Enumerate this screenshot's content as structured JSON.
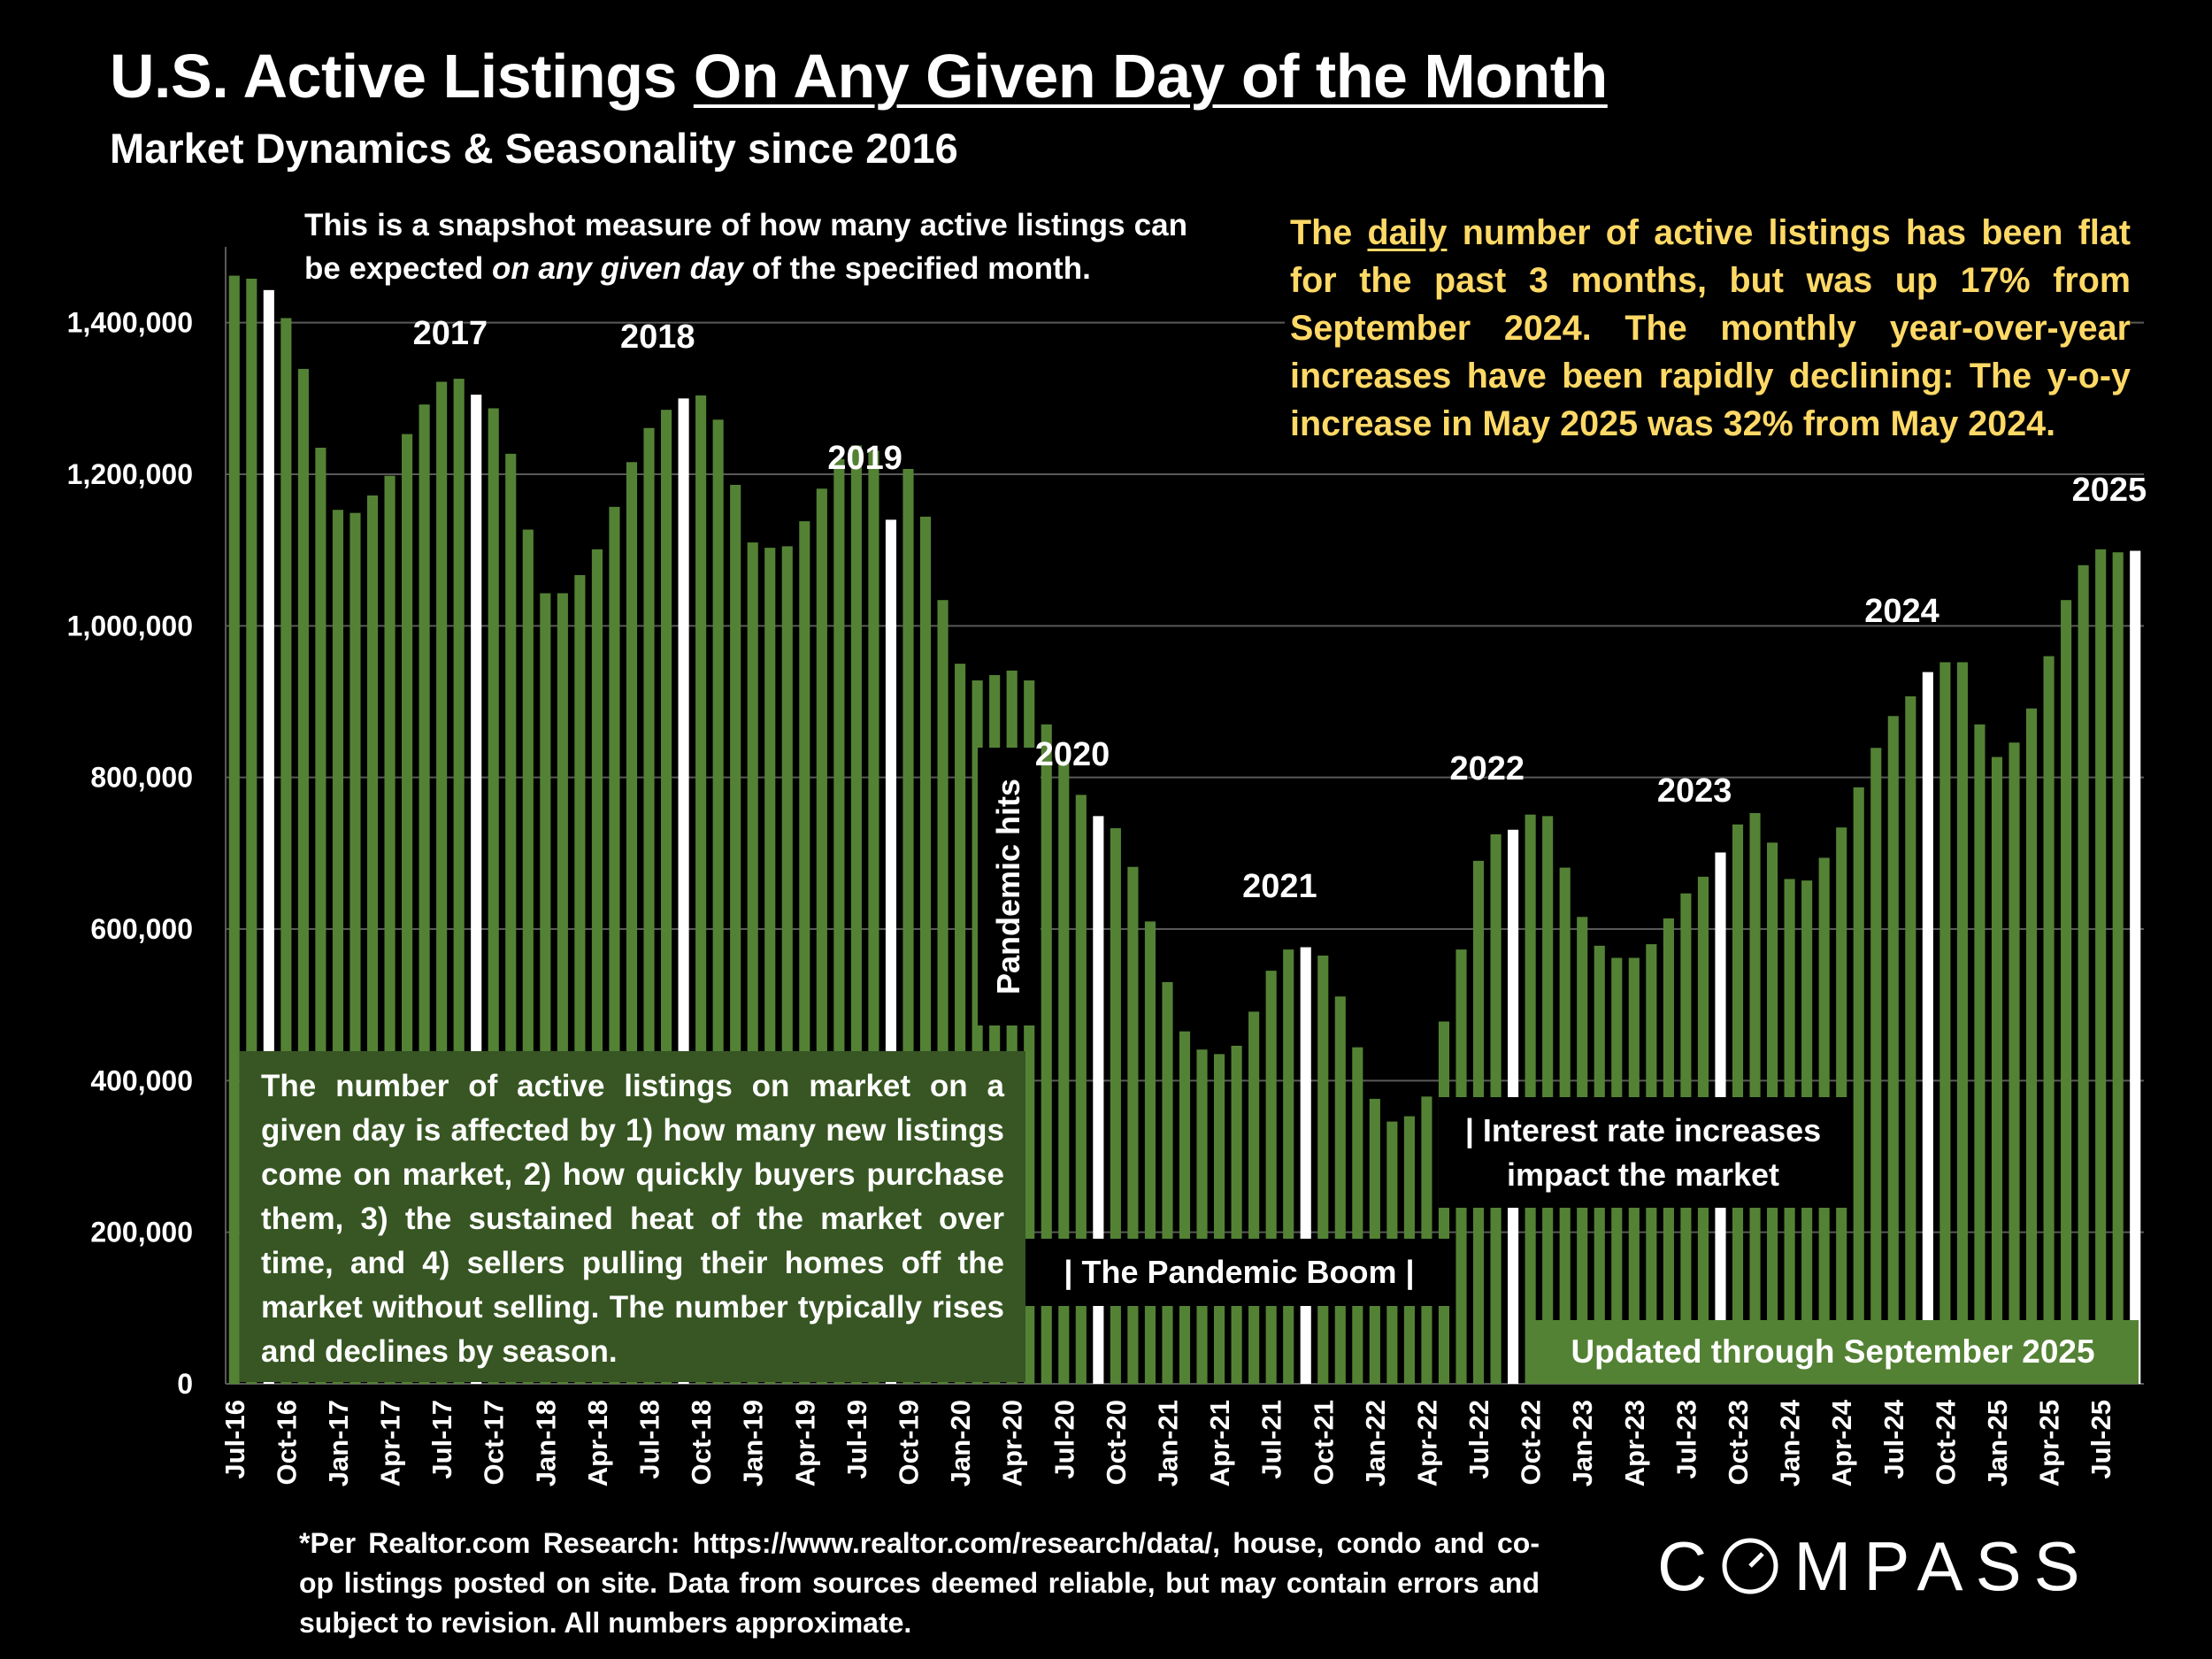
{
  "title": {
    "prefix": "U.S. Active Listings ",
    "underlined": "On Any Given Day of the Month"
  },
  "subtitle": "Market Dynamics & Seasonality since 2016",
  "notes": {
    "top": {
      "before": "This is a snapshot measure of how many active listings can be expected ",
      "italic": "on any given day",
      "after": " of the specified month."
    },
    "yellow": {
      "before": "The ",
      "underlined": "daily",
      "after": " number of active listings has been flat for the past 3 months, but was up 17% from September 2024. The monthly year-over-year increases have been rapidly declining:  The y-o-y increase in May 2025 was 32% from May 2024."
    },
    "green": "The number of active listings on market on a given day is affected by 1) how many new listings come on market, 2) how quickly buyers purchase them, 3) the sustained heat of the market over time, and 4) sellers pulling their homes off the market without selling. The number typically rises and declines by season.",
    "pandemic_hits": "Pandemic hits",
    "pandemic_boom": "|  The Pandemic Boom  |",
    "interest_line1": "| Interest rate increases",
    "interest_line2": "impact the market",
    "updated": "Updated through September 2025"
  },
  "footnote": "*Per Realtor.com Research:  https://www.realtor.com/research/data/, house, condo and co-op listings posted on site. Data from sources deemed reliable, but may contain errors and subject to revision. All numbers approximate.",
  "logo": "COMPASS",
  "colors": {
    "bar": "#548235",
    "highlight_bar": "#FFFFFF",
    "grid": "#595959",
    "note_text": "#FFD966",
    "green_box": "#375623",
    "updated_box": "#548235"
  },
  "chart_data": {
    "type": "bar",
    "ylim": [
      0,
      1500000
    ],
    "yticks": [
      0,
      200000,
      400000,
      600000,
      800000,
      1000000,
      1200000,
      1400000
    ],
    "ytick_labels": [
      "0",
      "200,000",
      "400,000",
      "600,000",
      "800,000",
      "1,000,000",
      "1,200,000",
      "1,400,000"
    ],
    "grid": true,
    "highlight_month": "Sep",
    "categories": [
      "Jul-16",
      "Aug-16",
      "Sep-16",
      "Oct-16",
      "Nov-16",
      "Dec-16",
      "Jan-17",
      "Feb-17",
      "Mar-17",
      "Apr-17",
      "May-17",
      "Jun-17",
      "Jul-17",
      "Aug-17",
      "Sep-17",
      "Oct-17",
      "Nov-17",
      "Dec-17",
      "Jan-18",
      "Feb-18",
      "Mar-18",
      "Apr-18",
      "May-18",
      "Jun-18",
      "Jul-18",
      "Aug-18",
      "Sep-18",
      "Oct-18",
      "Nov-18",
      "Dec-18",
      "Jan-19",
      "Feb-19",
      "Mar-19",
      "Apr-19",
      "May-19",
      "Jun-19",
      "Jul-19",
      "Aug-19",
      "Sep-19",
      "Oct-19",
      "Nov-19",
      "Dec-19",
      "Jan-20",
      "Feb-20",
      "Mar-20",
      "Apr-20",
      "May-20",
      "Jun-20",
      "Jul-20",
      "Aug-20",
      "Sep-20",
      "Oct-20",
      "Nov-20",
      "Dec-20",
      "Jan-21",
      "Feb-21",
      "Mar-21",
      "Apr-21",
      "May-21",
      "Jun-21",
      "Jul-21",
      "Aug-21",
      "Sep-21",
      "Oct-21",
      "Nov-21",
      "Dec-21",
      "Jan-22",
      "Feb-22",
      "Mar-22",
      "Apr-22",
      "May-22",
      "Jun-22",
      "Jul-22",
      "Aug-22",
      "Sep-22",
      "Oct-22",
      "Nov-22",
      "Dec-22",
      "Jan-23",
      "Feb-23",
      "Mar-23",
      "Apr-23",
      "May-23",
      "Jun-23",
      "Jul-23",
      "Aug-23",
      "Sep-23",
      "Oct-23",
      "Nov-23",
      "Dec-23",
      "Jan-24",
      "Feb-24",
      "Mar-24",
      "Apr-24",
      "May-24",
      "Jun-24",
      "Jul-24",
      "Aug-24",
      "Sep-24",
      "Oct-24",
      "Nov-24",
      "Dec-24",
      "Jan-25",
      "Feb-25",
      "Mar-25",
      "Apr-25",
      "May-25",
      "Jun-25",
      "Jul-25",
      "Aug-25",
      "Sep-25"
    ],
    "values": [
      1462000,
      1458000,
      1443000,
      1406000,
      1339000,
      1235000,
      1153000,
      1149000,
      1172000,
      1198000,
      1253000,
      1292000,
      1322000,
      1326000,
      1305000,
      1287000,
      1227000,
      1127000,
      1043000,
      1043000,
      1067000,
      1101000,
      1157000,
      1216000,
      1261000,
      1285000,
      1300000,
      1304000,
      1272000,
      1186000,
      1110000,
      1103000,
      1105000,
      1138000,
      1181000,
      1220000,
      1238000,
      1231000,
      1140000,
      1207000,
      1144000,
      1034000,
      950000,
      928000,
      935000,
      941000,
      928000,
      870000,
      822000,
      777000,
      749000,
      733000,
      682000,
      610000,
      530000,
      465000,
      441000,
      435000,
      446000,
      491000,
      545000,
      573000,
      576000,
      565000,
      511000,
      444000,
      376000,
      346000,
      353000,
      379000,
      478000,
      573000,
      690000,
      725000,
      731000,
      751000,
      749000,
      681000,
      616000,
      578000,
      562000,
      562000,
      580000,
      614000,
      647000,
      669000,
      701000,
      738000,
      753000,
      714000,
      666000,
      664000,
      694000,
      734000,
      787000,
      839000,
      881000,
      907000,
      939000,
      952000,
      952000,
      870000,
      827000,
      846000,
      891000,
      960000,
      1034000,
      1080000,
      1101000,
      1097000,
      1099000
    ],
    "year_labels": [
      {
        "text": "2017",
        "month": "Sep-17"
      },
      {
        "text": "2018",
        "month": "Sep-18"
      },
      {
        "text": "2019",
        "month": "Sep-19"
      },
      {
        "text": "2020",
        "month": "Sep-20"
      },
      {
        "text": "2021",
        "month": "Sep-21"
      },
      {
        "text": "2022",
        "month": "Sep-22"
      },
      {
        "text": "2023",
        "month": "Sep-23"
      },
      {
        "text": "2024",
        "month": "Sep-24"
      },
      {
        "text": "2025",
        "month": "Sep-25"
      }
    ]
  }
}
